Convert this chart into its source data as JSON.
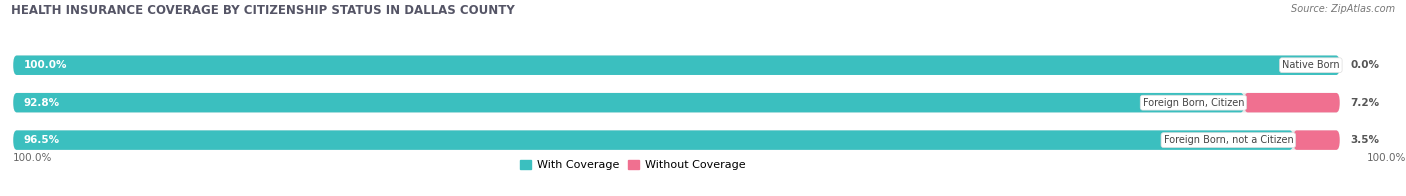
{
  "title": "HEALTH INSURANCE COVERAGE BY CITIZENSHIP STATUS IN DALLAS COUNTY",
  "source": "Source: ZipAtlas.com",
  "categories": [
    "Native Born",
    "Foreign Born, Citizen",
    "Foreign Born, not a Citizen"
  ],
  "with_coverage": [
    100.0,
    92.8,
    96.5
  ],
  "without_coverage": [
    0.0,
    7.2,
    3.5
  ],
  "color_with": "#3bbfbf",
  "color_without": "#f07090",
  "color_without_light": "#f4a8c0",
  "bar_bg_color": "#e8e8e8",
  "title_fontsize": 8.5,
  "source_fontsize": 7.0,
  "label_fontsize": 7.5,
  "tick_fontsize": 7.5,
  "legend_fontsize": 8.0,
  "left_axis_label": "100.0%",
  "right_axis_label": "100.0%",
  "background_color": "#ffffff"
}
